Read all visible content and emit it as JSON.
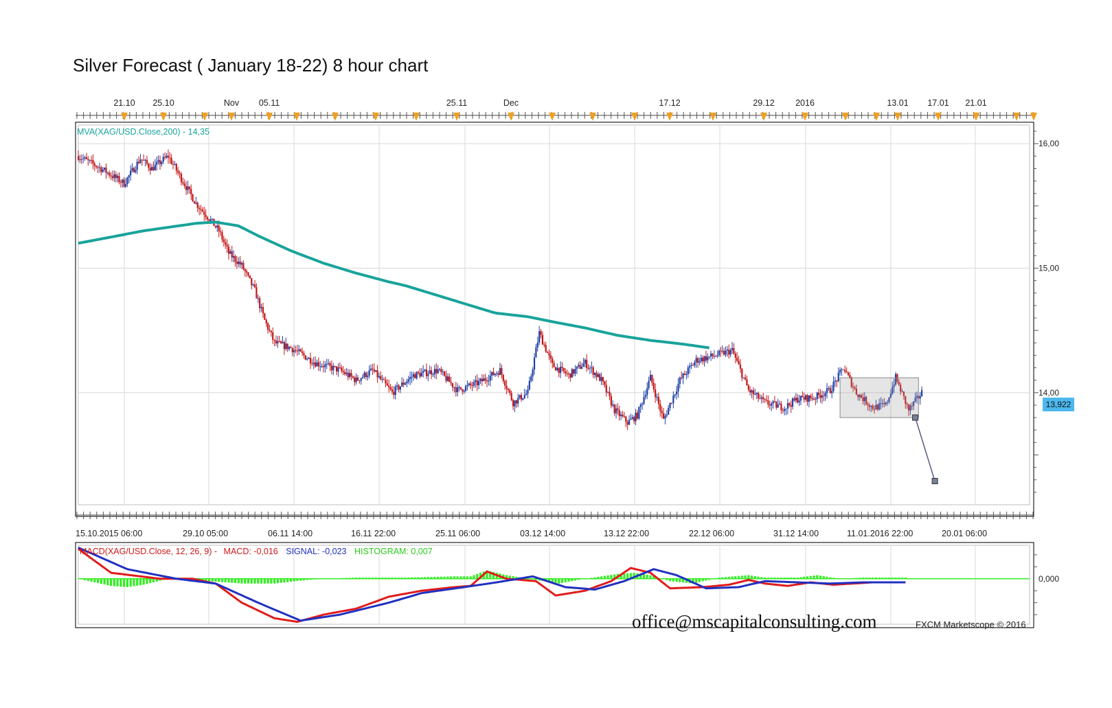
{
  "title": "Silver Forecast ( January 18-22) 8 hour chart",
  "email": "office@mscapitalconsulting.com",
  "copyright": "FXCM Marketscope © 2016",
  "colors": {
    "bull": "#1f3fa8",
    "bear": "#c41414",
    "ma": "#18a39a",
    "macd": "#e01b1b",
    "signal": "#2030c0",
    "histogram": "#33ee22",
    "grid": "#d8d8d8",
    "event_marker": "#f0a020",
    "badge": "#4db8ee"
  },
  "chart_data": [
    {
      "type": "candlestick",
      "series_label": "MVA(XAG/USD.Close,200) - 14,35",
      "ma_value": "14,35",
      "current_price": "13,922",
      "y_ticks": [
        "16,00",
        "15,00",
        "14,00"
      ],
      "y_range": [
        13.1,
        16.15
      ],
      "top_axis_labels": [
        "21.10",
        "25.10",
        "Nov",
        "05.11",
        "25.11",
        "Dec",
        "17.12",
        "29.12",
        "2016",
        "13.01",
        "17.01",
        "21.01"
      ],
      "bottom_axis_labels": [
        "15.10.2015 06:00",
        "29.10 05:00",
        "06.11 14:00",
        "16.11 22:00",
        "25.11 06:00",
        "03.12 14:00",
        "13.12 22:00",
        "22.12 06:00",
        "31.12 14:00",
        "11.01.2016 22:00",
        "20.01 06:00"
      ],
      "close_path": [
        [
          0,
          15.9
        ],
        [
          14,
          15.8
        ],
        [
          28,
          15.68
        ],
        [
          38,
          15.88
        ],
        [
          45,
          15.8
        ],
        [
          55,
          15.9
        ],
        [
          63,
          15.72
        ],
        [
          72,
          15.52
        ],
        [
          80,
          15.4
        ],
        [
          86,
          15.3
        ],
        [
          92,
          15.12
        ],
        [
          100,
          15.02
        ],
        [
          108,
          14.82
        ],
        [
          114,
          14.58
        ],
        [
          120,
          14.4
        ],
        [
          130,
          14.36
        ],
        [
          145,
          14.24
        ],
        [
          160,
          14.18
        ],
        [
          170,
          14.1
        ],
        [
          180,
          14.18
        ],
        [
          192,
          14.0
        ],
        [
          205,
          14.14
        ],
        [
          220,
          14.18
        ],
        [
          232,
          14.02
        ],
        [
          245,
          14.08
        ],
        [
          258,
          14.18
        ],
        [
          266,
          13.92
        ],
        [
          275,
          14.0
        ],
        [
          282,
          14.48
        ],
        [
          290,
          14.22
        ],
        [
          300,
          14.14
        ],
        [
          310,
          14.24
        ],
        [
          320,
          14.1
        ],
        [
          328,
          13.86
        ],
        [
          336,
          13.76
        ],
        [
          342,
          13.82
        ],
        [
          350,
          14.12
        ],
        [
          358,
          13.78
        ],
        [
          368,
          14.1
        ],
        [
          378,
          14.26
        ],
        [
          390,
          14.3
        ],
        [
          400,
          14.34
        ],
        [
          410,
          14.02
        ],
        [
          420,
          13.92
        ],
        [
          432,
          13.88
        ],
        [
          440,
          13.95
        ],
        [
          450,
          13.96
        ],
        [
          460,
          14.02
        ],
        [
          468,
          14.2
        ],
        [
          476,
          14.0
        ],
        [
          486,
          13.88
        ],
        [
          494,
          13.9
        ],
        [
          500,
          14.12
        ],
        [
          508,
          13.86
        ],
        [
          516,
          14.0
        ]
      ],
      "ma200": [
        [
          0,
          15.2
        ],
        [
          40,
          15.3
        ],
        [
          72,
          15.36
        ],
        [
          84,
          15.37
        ],
        [
          98,
          15.34
        ],
        [
          110,
          15.26
        ],
        [
          130,
          15.14
        ],
        [
          150,
          15.04
        ],
        [
          170,
          14.96
        ],
        [
          190,
          14.89
        ],
        [
          200,
          14.86
        ],
        [
          220,
          14.78
        ],
        [
          240,
          14.7
        ],
        [
          255,
          14.64
        ],
        [
          275,
          14.61
        ],
        [
          290,
          14.57
        ],
        [
          310,
          14.52
        ],
        [
          330,
          14.46
        ],
        [
          350,
          14.42
        ],
        [
          370,
          14.39
        ],
        [
          386,
          14.36
        ]
      ],
      "forecast_box": {
        "x_from": 466,
        "x_to": 514,
        "low": 13.8,
        "high": 14.12
      },
      "forecast_line": {
        "from": [
          512,
          13.8
        ],
        "to": [
          524,
          13.29
        ]
      }
    },
    {
      "type": "line",
      "label_prefix": "MACD(XAG/USD.Close, 12, 26, 9) -",
      "macd_label": "MACD: -0,016",
      "signal_label": "SIGNAL: -0,023",
      "histogram_label": "HISTOGRAM: 0,007",
      "y_tick": "0,000",
      "y_range": [
        -0.38,
        0.28
      ],
      "macd": [
        [
          0,
          0.25
        ],
        [
          20,
          0.05
        ],
        [
          50,
          0.0
        ],
        [
          70,
          0.0
        ],
        [
          84,
          -0.04
        ],
        [
          100,
          -0.2
        ],
        [
          120,
          -0.33
        ],
        [
          134,
          -0.36
        ],
        [
          150,
          -0.3
        ],
        [
          170,
          -0.25
        ],
        [
          190,
          -0.15
        ],
        [
          210,
          -0.1
        ],
        [
          230,
          -0.07
        ],
        [
          240,
          -0.06
        ],
        [
          250,
          0.06
        ],
        [
          262,
          0.0
        ],
        [
          280,
          -0.02
        ],
        [
          292,
          -0.14
        ],
        [
          310,
          -0.1
        ],
        [
          326,
          -0.02
        ],
        [
          338,
          0.09
        ],
        [
          350,
          0.05
        ],
        [
          362,
          -0.08
        ],
        [
          382,
          -0.07
        ],
        [
          398,
          -0.05
        ],
        [
          410,
          -0.01
        ],
        [
          420,
          -0.04
        ],
        [
          434,
          -0.06
        ],
        [
          448,
          -0.03
        ],
        [
          462,
          -0.05
        ],
        [
          486,
          -0.03
        ],
        [
          506,
          -0.03
        ]
      ],
      "signal": [
        [
          0,
          0.26
        ],
        [
          30,
          0.08
        ],
        [
          60,
          0.0
        ],
        [
          84,
          -0.04
        ],
        [
          110,
          -0.2
        ],
        [
          136,
          -0.35
        ],
        [
          160,
          -0.3
        ],
        [
          190,
          -0.2
        ],
        [
          210,
          -0.12
        ],
        [
          236,
          -0.07
        ],
        [
          256,
          -0.03
        ],
        [
          278,
          0.02
        ],
        [
          298,
          -0.07
        ],
        [
          316,
          -0.09
        ],
        [
          334,
          -0.02
        ],
        [
          352,
          0.08
        ],
        [
          366,
          0.03
        ],
        [
          384,
          -0.08
        ],
        [
          404,
          -0.07
        ],
        [
          420,
          -0.02
        ],
        [
          440,
          -0.03
        ],
        [
          460,
          -0.04
        ],
        [
          480,
          -0.03
        ],
        [
          506,
          -0.03
        ]
      ],
      "histogram": [
        [
          0,
          0.0
        ],
        [
          10,
          -0.03
        ],
        [
          20,
          -0.06
        ],
        [
          30,
          -0.07
        ],
        [
          40,
          -0.05
        ],
        [
          55,
          0.0
        ],
        [
          70,
          0.0
        ],
        [
          80,
          -0.02
        ],
        [
          100,
          -0.04
        ],
        [
          120,
          -0.04
        ],
        [
          140,
          -0.01
        ],
        [
          150,
          0.0
        ],
        [
          170,
          0.01
        ],
        [
          200,
          0.01
        ],
        [
          230,
          0.02
        ],
        [
          240,
          0.02
        ],
        [
          250,
          0.07
        ],
        [
          262,
          0.03
        ],
        [
          280,
          -0.01
        ],
        [
          294,
          -0.04
        ],
        [
          310,
          0.0
        ],
        [
          330,
          0.04
        ],
        [
          340,
          0.05
        ],
        [
          350,
          0.03
        ],
        [
          362,
          -0.02
        ],
        [
          376,
          -0.04
        ],
        [
          392,
          0.01
        ],
        [
          410,
          0.03
        ],
        [
          420,
          0.01
        ],
        [
          440,
          0.01
        ],
        [
          452,
          0.03
        ],
        [
          466,
          0.0
        ],
        [
          480,
          0.01
        ],
        [
          506,
          0.01
        ]
      ]
    }
  ]
}
